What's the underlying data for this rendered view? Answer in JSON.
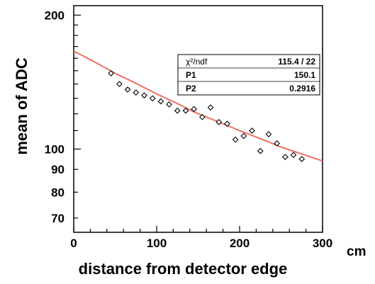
{
  "chart_data": {
    "type": "scatter",
    "title": "",
    "xlabel": "distance from detector edge",
    "x_unit": "cm",
    "ylabel": "mean of ADC",
    "xlim": [
      0,
      300
    ],
    "ylim": [
      65,
      210
    ],
    "yscale": "log",
    "x_ticks": [
      "0",
      "100",
      "200",
      "300"
    ],
    "y_ticks": [
      "200",
      "100",
      "90",
      "80",
      "70"
    ],
    "marker": "open-diamond",
    "fit_color": "#f07060",
    "series": [
      {
        "points": [
          {
            "x": 45,
            "y": 148
          },
          {
            "x": 55,
            "y": 140
          },
          {
            "x": 65,
            "y": 136
          },
          {
            "x": 75,
            "y": 134
          },
          {
            "x": 85,
            "y": 132
          },
          {
            "x": 95,
            "y": 130
          },
          {
            "x": 105,
            "y": 128
          },
          {
            "x": 115,
            "y": 126
          },
          {
            "x": 125,
            "y": 122
          },
          {
            "x": 135,
            "y": 122
          },
          {
            "x": 145,
            "y": 123
          },
          {
            "x": 155,
            "y": 118
          },
          {
            "x": 165,
            "y": 124
          },
          {
            "x": 175,
            "y": 115
          },
          {
            "x": 185,
            "y": 114
          },
          {
            "x": 195,
            "y": 105
          },
          {
            "x": 205,
            "y": 107
          },
          {
            "x": 215,
            "y": 110
          },
          {
            "x": 225,
            "y": 99
          },
          {
            "x": 235,
            "y": 108
          },
          {
            "x": 245,
            "y": 103
          },
          {
            "x": 255,
            "y": 96
          },
          {
            "x": 265,
            "y": 97
          },
          {
            "x": 275,
            "y": 95
          }
        ]
      }
    ],
    "fit": {
      "model": "P1*exp(-x/P2) approx",
      "x": [
        0,
        50,
        100,
        150,
        200,
        250,
        300
      ],
      "y": [
        166,
        148,
        133,
        120,
        110,
        101,
        94
      ]
    },
    "stats_box": {
      "rows": [
        {
          "label": "χ²/ndf",
          "value": "115.4   /   22"
        },
        {
          "label": "P1",
          "value": "150.1"
        },
        {
          "label": "P2",
          "value": "0.2916"
        }
      ]
    }
  }
}
